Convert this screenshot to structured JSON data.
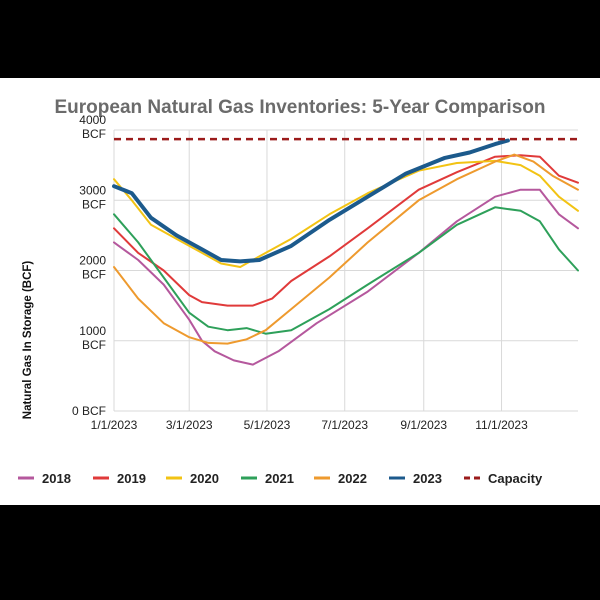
{
  "chart_data": {
    "type": "line",
    "title": "European Natural Gas Inventories: 5-Year Comparison",
    "xlabel": "",
    "ylabel": "Natural Gas In Storage (BCF)",
    "ylim": [
      0,
      4000
    ],
    "xlim_day_of_year": [
      1,
      365
    ],
    "grid": true,
    "legend_position": "bottom",
    "y_ticks": [
      {
        "value": 0,
        "label": "0 BCF",
        "label_lines": [
          "0 BCF"
        ]
      },
      {
        "value": 1000,
        "label": "1000 BCF",
        "label_lines": [
          "1000",
          "BCF"
        ]
      },
      {
        "value": 2000,
        "label": "2000 BCF",
        "label_lines": [
          "2000",
          "BCF"
        ]
      },
      {
        "value": 3000,
        "label": "3000 BCF",
        "label_lines": [
          "3000",
          "BCF"
        ]
      },
      {
        "value": 4000,
        "label": "4000 BCF",
        "label_lines": [
          "4000",
          "BCF"
        ]
      }
    ],
    "x_ticks": [
      {
        "day": 1,
        "label": "1/1/2023"
      },
      {
        "day": 60,
        "label": "3/1/2023"
      },
      {
        "day": 121,
        "label": "5/1/2023"
      },
      {
        "day": 182,
        "label": "7/1/2023"
      },
      {
        "day": 244,
        "label": "9/1/2023"
      },
      {
        "day": 305,
        "label": "11/1/2023"
      }
    ],
    "capacity": {
      "name": "Capacity",
      "value": 3870,
      "color": "#9b1b1b"
    },
    "series": [
      {
        "name": "2018",
        "color": "#b5589d",
        "points": [
          [
            1,
            2400
          ],
          [
            20,
            2150
          ],
          [
            40,
            1800
          ],
          [
            60,
            1300
          ],
          [
            70,
            1000
          ],
          [
            80,
            850
          ],
          [
            95,
            720
          ],
          [
            110,
            660
          ],
          [
            130,
            850
          ],
          [
            160,
            1250
          ],
          [
            200,
            1700
          ],
          [
            240,
            2250
          ],
          [
            270,
            2700
          ],
          [
            300,
            3050
          ],
          [
            320,
            3150
          ],
          [
            335,
            3150
          ],
          [
            350,
            2800
          ],
          [
            365,
            2600
          ]
        ]
      },
      {
        "name": "2019",
        "color": "#e03a3a",
        "points": [
          [
            1,
            2600
          ],
          [
            20,
            2250
          ],
          [
            40,
            2000
          ],
          [
            60,
            1650
          ],
          [
            70,
            1550
          ],
          [
            90,
            1500
          ],
          [
            110,
            1500
          ],
          [
            125,
            1600
          ],
          [
            140,
            1850
          ],
          [
            170,
            2200
          ],
          [
            200,
            2600
          ],
          [
            240,
            3150
          ],
          [
            270,
            3400
          ],
          [
            300,
            3620
          ],
          [
            320,
            3640
          ],
          [
            335,
            3620
          ],
          [
            350,
            3350
          ],
          [
            365,
            3250
          ]
        ]
      },
      {
        "name": "2020",
        "color": "#f2c314",
        "points": [
          [
            1,
            3300
          ],
          [
            15,
            3000
          ],
          [
            30,
            2650
          ],
          [
            50,
            2450
          ],
          [
            70,
            2250
          ],
          [
            85,
            2100
          ],
          [
            100,
            2050
          ],
          [
            115,
            2200
          ],
          [
            140,
            2450
          ],
          [
            170,
            2800
          ],
          [
            200,
            3100
          ],
          [
            240,
            3420
          ],
          [
            270,
            3530
          ],
          [
            300,
            3560
          ],
          [
            320,
            3500
          ],
          [
            335,
            3350
          ],
          [
            350,
            3050
          ],
          [
            365,
            2850
          ]
        ]
      },
      {
        "name": "2021",
        "color": "#2ea05a",
        "points": [
          [
            1,
            2800
          ],
          [
            20,
            2400
          ],
          [
            40,
            1900
          ],
          [
            60,
            1400
          ],
          [
            75,
            1200
          ],
          [
            90,
            1150
          ],
          [
            105,
            1180
          ],
          [
            120,
            1100
          ],
          [
            140,
            1150
          ],
          [
            170,
            1450
          ],
          [
            200,
            1800
          ],
          [
            240,
            2250
          ],
          [
            270,
            2650
          ],
          [
            300,
            2900
          ],
          [
            320,
            2850
          ],
          [
            335,
            2700
          ],
          [
            350,
            2300
          ],
          [
            365,
            2000
          ]
        ]
      },
      {
        "name": "2022",
        "color": "#ee9a2e",
        "points": [
          [
            1,
            2050
          ],
          [
            20,
            1600
          ],
          [
            40,
            1250
          ],
          [
            60,
            1050
          ],
          [
            75,
            970
          ],
          [
            90,
            960
          ],
          [
            105,
            1020
          ],
          [
            120,
            1150
          ],
          [
            140,
            1450
          ],
          [
            170,
            1900
          ],
          [
            200,
            2400
          ],
          [
            240,
            3000
          ],
          [
            270,
            3300
          ],
          [
            300,
            3550
          ],
          [
            315,
            3650
          ],
          [
            330,
            3550
          ],
          [
            345,
            3350
          ],
          [
            365,
            3150
          ]
        ]
      },
      {
        "name": "2023",
        "color": "#1c5a8c",
        "points": [
          [
            1,
            3200
          ],
          [
            15,
            3100
          ],
          [
            30,
            2750
          ],
          [
            50,
            2500
          ],
          [
            70,
            2300
          ],
          [
            85,
            2150
          ],
          [
            100,
            2130
          ],
          [
            115,
            2150
          ],
          [
            140,
            2350
          ],
          [
            170,
            2720
          ],
          [
            200,
            3050
          ],
          [
            230,
            3380
          ],
          [
            260,
            3600
          ],
          [
            280,
            3680
          ],
          [
            300,
            3800
          ],
          [
            310,
            3850
          ]
        ]
      }
    ]
  }
}
